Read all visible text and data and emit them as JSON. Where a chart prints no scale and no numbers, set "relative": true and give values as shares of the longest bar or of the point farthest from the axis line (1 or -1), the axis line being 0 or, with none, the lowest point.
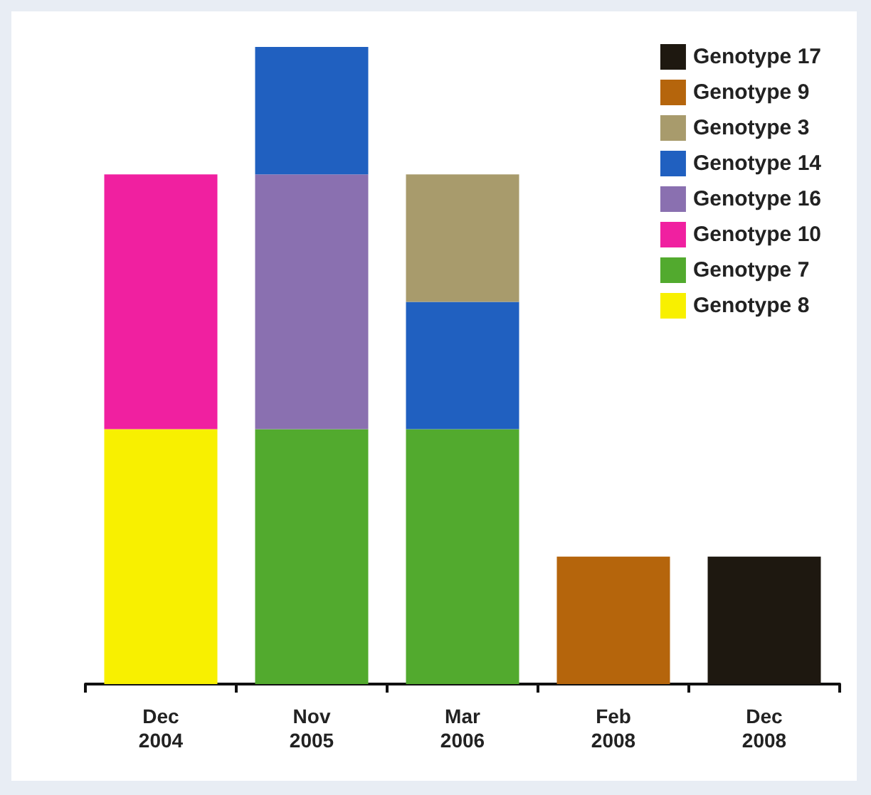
{
  "chart_data": {
    "type": "bar",
    "stacked": true,
    "relative": true,
    "legend": "top right",
    "grid": false,
    "categories": [
      "Dec\n2004",
      "Nov\n2005",
      "Mar\n2006",
      "Feb\n2008",
      "Dec\n2008"
    ],
    "series": [
      {
        "name": "Genotype 8",
        "color": "#f8f000",
        "values": [
          0.4,
          null,
          null,
          null,
          null
        ]
      },
      {
        "name": "Genotype 7",
        "color": "#52aa2e",
        "values": [
          null,
          0.4,
          0.4,
          null,
          null
        ]
      },
      {
        "name": "Genotype 10",
        "color": "#f020a0",
        "values": [
          0.4,
          null,
          null,
          null,
          null
        ]
      },
      {
        "name": "Genotype 16",
        "color": "#8a70b0",
        "values": [
          null,
          0.4,
          null,
          null,
          null
        ]
      },
      {
        "name": "Genotype 14",
        "color": "#2060c0",
        "values": [
          null,
          0.2,
          0.2,
          null,
          null
        ]
      },
      {
        "name": "Genotype 3",
        "color": "#a89b6c",
        "values": [
          null,
          null,
          0.2,
          null,
          null
        ]
      },
      {
        "name": "Genotype 9",
        "color": "#b5650c",
        "values": [
          null,
          null,
          null,
          0.2,
          null
        ]
      },
      {
        "name": "Genotype 17",
        "color": "#1e1810",
        "values": [
          null,
          null,
          null,
          null,
          0.2
        ]
      }
    ]
  }
}
